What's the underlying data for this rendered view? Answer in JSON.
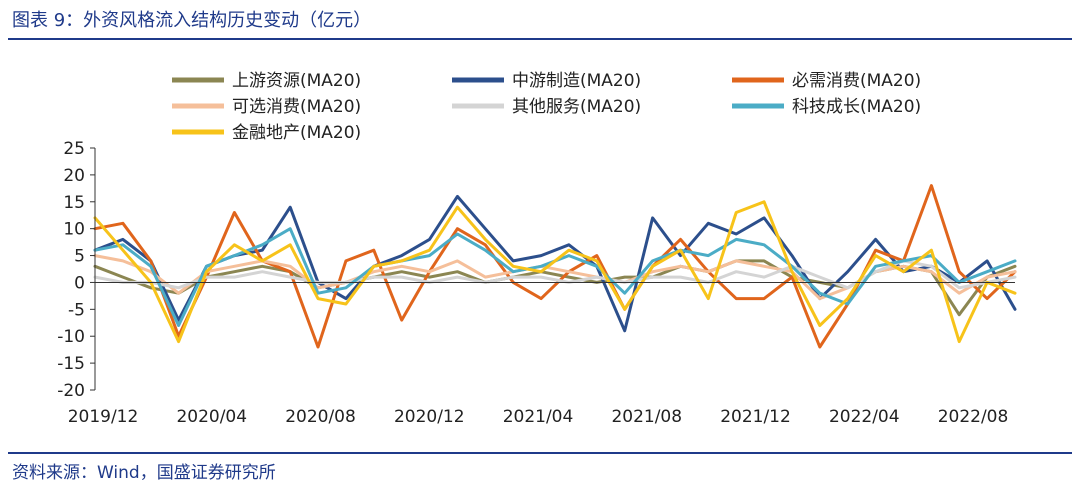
{
  "header": {
    "title": "图表 9：外资风格流入结构历史变动（亿元）"
  },
  "footer": {
    "source": "资料来源：Wind，国盛证券研究所"
  },
  "colors": {
    "accent": "#1f3a8a",
    "series": [
      "#8b8652",
      "#2c4f8c",
      "#e0651c",
      "#f5bf9a",
      "#d4d4d4",
      "#4bacc6",
      "#f7c31a"
    ]
  },
  "chart_data": {
    "type": "line",
    "ylim": [
      -20,
      25
    ],
    "yticks": [
      25,
      20,
      15,
      10,
      5,
      0,
      -5,
      -10,
      -15,
      -20
    ],
    "xticks": [
      "2019/12",
      "2020/04",
      "2020/08",
      "2020/12",
      "2021/04",
      "2021/08",
      "2021/12",
      "2022/04",
      "2022/08"
    ],
    "legend": "top",
    "grid": false,
    "x": [
      "2019/12",
      "2020/01",
      "2020/02",
      "2020/03",
      "2020/04",
      "2020/05",
      "2020/06",
      "2020/07",
      "2020/08",
      "2020/09",
      "2020/10",
      "2020/11",
      "2020/12",
      "2021/01",
      "2021/02",
      "2021/03",
      "2021/04",
      "2021/05",
      "2021/06",
      "2021/07",
      "2021/08",
      "2021/09",
      "2021/10",
      "2021/11",
      "2021/12",
      "2022/01",
      "2022/02",
      "2022/03",
      "2022/04",
      "2022/05",
      "2022/06",
      "2022/07",
      "2022/08",
      "2022/09"
    ],
    "series": [
      {
        "name": "上游资源(MA20)",
        "values": [
          3,
          1,
          -1,
          -2,
          1,
          2,
          3,
          2,
          -1,
          0,
          1,
          2,
          1,
          2,
          0,
          1,
          2,
          1,
          0,
          1,
          1,
          3,
          2,
          4,
          4,
          1,
          0,
          -1,
          2,
          3,
          2,
          -6,
          1,
          3
        ]
      },
      {
        "name": "中游制造(MA20)",
        "values": [
          6,
          8,
          4,
          -7,
          3,
          5,
          6,
          14,
          0,
          -3,
          3,
          5,
          8,
          16,
          10,
          4,
          5,
          7,
          3,
          -9,
          12,
          5,
          11,
          9,
          12,
          5,
          -3,
          2,
          8,
          2,
          3,
          0,
          4,
          -5
        ]
      },
      {
        "name": "必需消费(MA20)",
        "values": [
          10,
          11,
          4,
          -10,
          1,
          13,
          4,
          2,
          -12,
          4,
          6,
          -7,
          2,
          10,
          7,
          0,
          -3,
          2,
          5,
          -5,
          3,
          8,
          2,
          -3,
          -3,
          1,
          -12,
          -4,
          6,
          4,
          18,
          2,
          -3,
          2
        ]
      },
      {
        "name": "可选消费(MA20)",
        "values": [
          5,
          4,
          2,
          -2,
          2,
          3,
          4,
          3,
          -1,
          0,
          2,
          3,
          2,
          4,
          1,
          2,
          3,
          2,
          1,
          0,
          2,
          3,
          2,
          4,
          3,
          2,
          -3,
          -1,
          2,
          3,
          2,
          -2,
          1,
          2
        ]
      },
      {
        "name": "其他服务(MA20)",
        "values": [
          1,
          0,
          0,
          -1,
          1,
          1,
          2,
          1,
          0,
          0,
          1,
          1,
          0,
          1,
          0,
          1,
          1,
          0,
          1,
          0,
          1,
          1,
          0,
          2,
          1,
          3,
          1,
          -1,
          2,
          4,
          3,
          -1,
          0,
          1
        ]
      },
      {
        "name": "科技成长(MA20)",
        "values": [
          6,
          7,
          3,
          -8,
          3,
          5,
          7,
          10,
          -2,
          -1,
          3,
          4,
          5,
          9,
          6,
          2,
          3,
          5,
          3,
          -2,
          4,
          6,
          5,
          8,
          7,
          3,
          -2,
          -4,
          3,
          4,
          5,
          0,
          2,
          4
        ]
      },
      {
        "name": "金融地产(MA20)",
        "values": [
          12,
          6,
          0,
          -11,
          2,
          7,
          4,
          7,
          -3,
          -4,
          3,
          4,
          6,
          14,
          8,
          3,
          2,
          6,
          4,
          -5,
          3,
          6,
          -3,
          13,
          15,
          2,
          -8,
          -3,
          5,
          2,
          6,
          -11,
          0,
          -2
        ]
      }
    ]
  }
}
